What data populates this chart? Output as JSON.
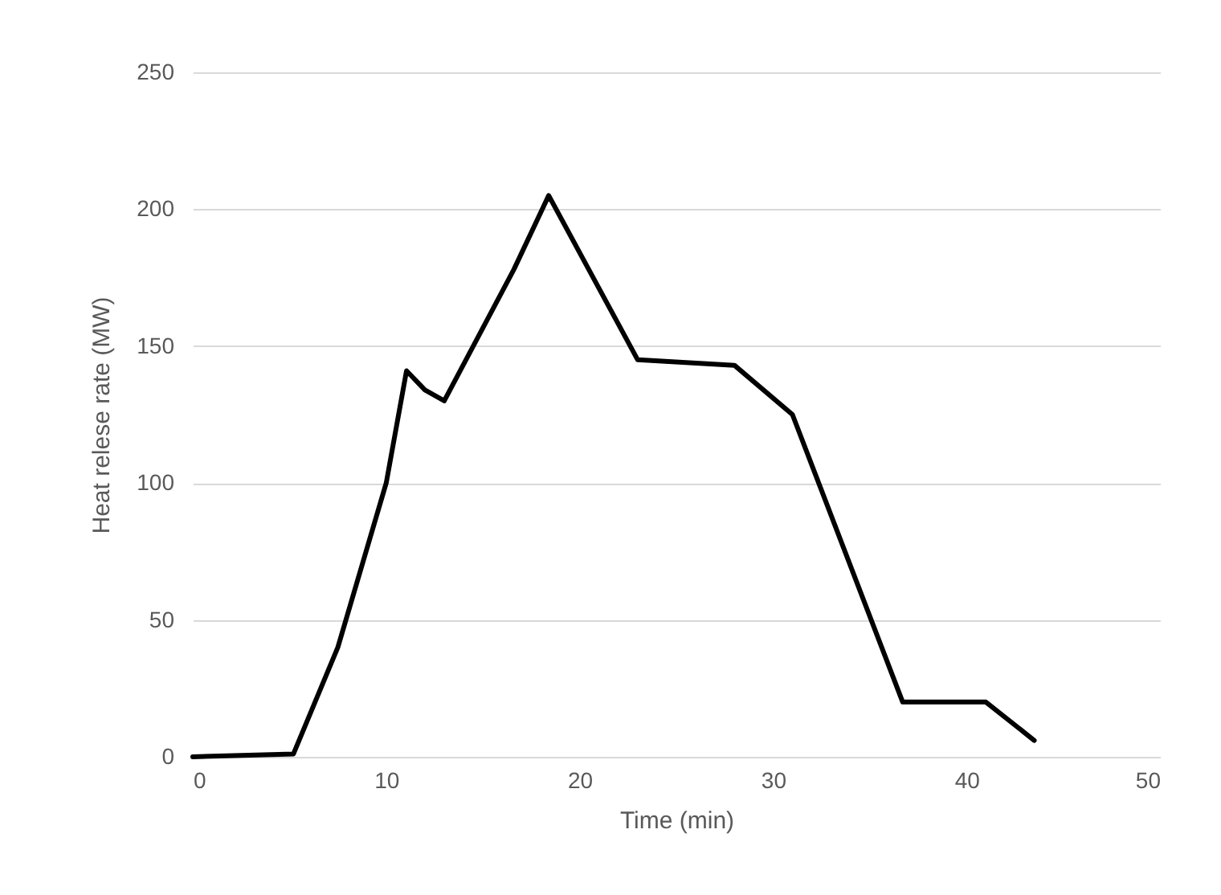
{
  "chart_data": {
    "type": "line",
    "xlabel": "Time (min)",
    "ylabel": "Heat relese rate (MW)",
    "x": [
      0,
      5.2,
      7.5,
      10,
      11.05,
      12,
      13,
      16.6,
      18.4,
      23,
      28,
      31,
      36.7,
      41,
      43.5
    ],
    "series": [
      {
        "color": "#000000",
        "values": [
          0,
          1,
          40,
          100,
          141,
          134,
          130,
          178,
          205,
          145,
          143,
          125,
          20,
          20,
          6
        ]
      }
    ],
    "xlim": [
      0,
      50
    ],
    "xticks": [
      0,
      10,
      20,
      30,
      40,
      50
    ],
    "ylim": [
      0,
      250
    ],
    "yticks": [
      0,
      50,
      100,
      150,
      200,
      250
    ],
    "grid": "y",
    "legend": false,
    "marker": "none",
    "line_style": "solid"
  }
}
